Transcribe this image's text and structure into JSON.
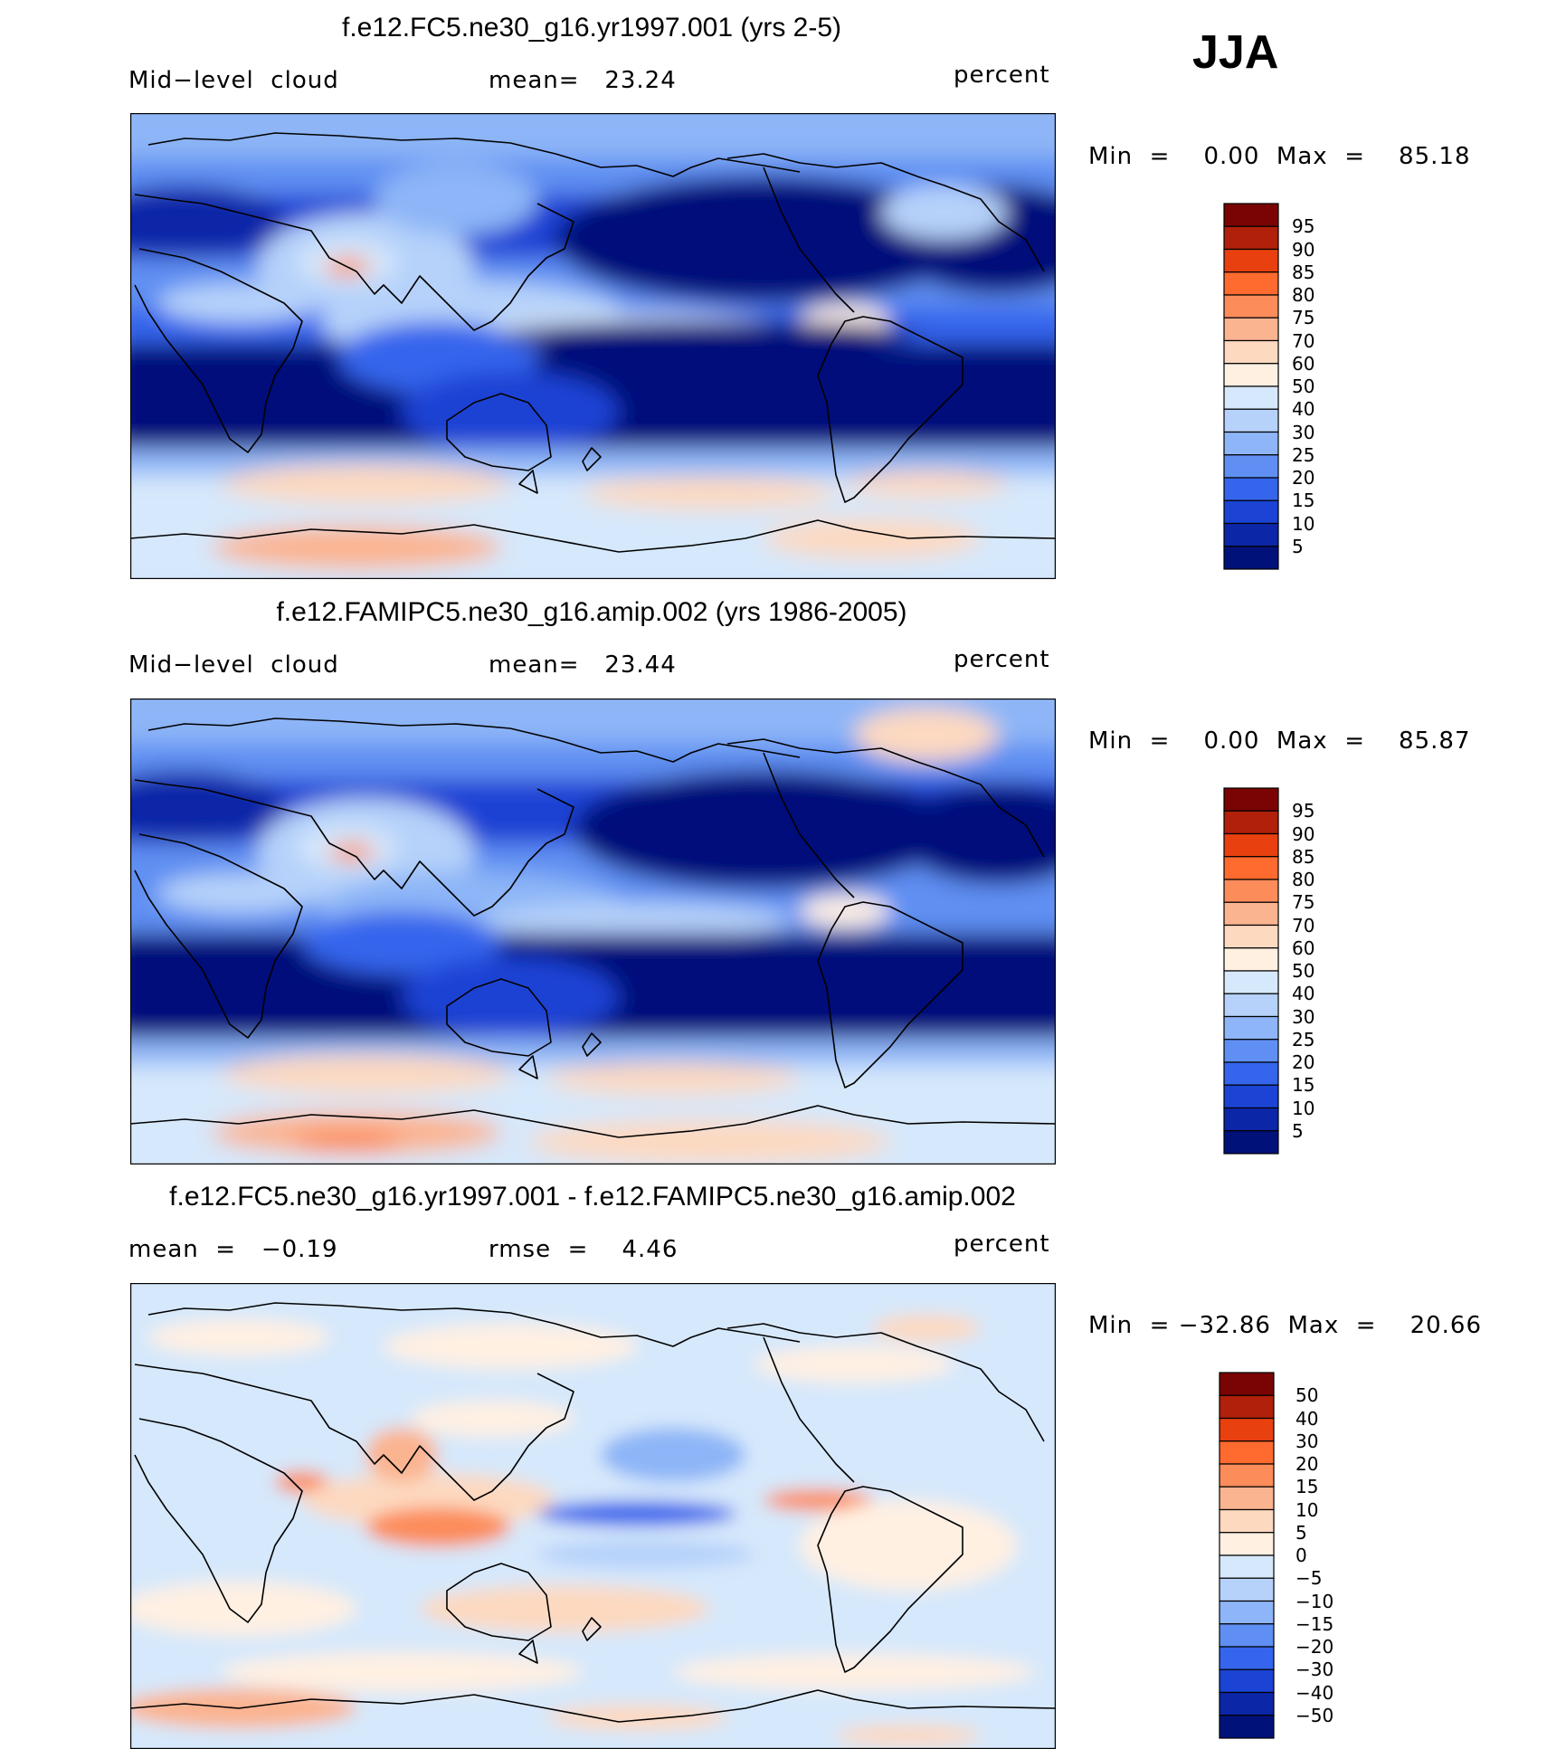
{
  "season": "JJA",
  "panels": [
    {
      "title": "f.e12.FC5.ne30_g16.yr1997.001 (yrs 2-5)",
      "left_label": "Mid−level  cloud",
      "mid_label": "mean=   23.24",
      "right_label": "percent",
      "minmax": "Min  =    0.00  Max  =    85.18",
      "colorbar_labels": [
        "95",
        "90",
        "85",
        "80",
        "75",
        "70",
        "60",
        "50",
        "40",
        "30",
        "25",
        "20",
        "15",
        "10",
        "5"
      ],
      "colorbar_colors": [
        "#7a0403",
        "#b0200a",
        "#e8400f",
        "#ff6a2e",
        "#fc8c5a",
        "#fbb490",
        "#fdd9c0",
        "#fff0e2",
        "#d6e8fb",
        "#b6d2fa",
        "#8db5f7",
        "#5f8ff2",
        "#3465ec",
        "#1b43d4",
        "#0c26a8",
        "#01117a"
      ]
    },
    {
      "title": "f.e12.FAMIPC5.ne30_g16.amip.002 (yrs 1986-2005)",
      "left_label": "Mid−level  cloud",
      "mid_label": "mean=   23.44",
      "right_label": "percent",
      "minmax": "Min  =    0.00  Max  =    85.87",
      "colorbar_labels": [
        "95",
        "90",
        "85",
        "80",
        "75",
        "70",
        "60",
        "50",
        "40",
        "30",
        "25",
        "20",
        "15",
        "10",
        "5"
      ],
      "colorbar_colors": [
        "#7a0403",
        "#b0200a",
        "#e8400f",
        "#ff6a2e",
        "#fc8c5a",
        "#fbb490",
        "#fdd9c0",
        "#fff0e2",
        "#d6e8fb",
        "#b6d2fa",
        "#8db5f7",
        "#5f8ff2",
        "#3465ec",
        "#1b43d4",
        "#0c26a8",
        "#01117a"
      ]
    },
    {
      "title": "f.e12.FC5.ne30_g16.yr1997.001 - f.e12.FAMIPC5.ne30_g16.amip.002",
      "left_label": "mean  =   −0.19",
      "mid_label": "rmse  =    4.46",
      "right_label": "percent",
      "minmax": "Min  = −32.86  Max  =    20.66",
      "colorbar_labels": [
        "50",
        "40",
        "30",
        "20",
        "15",
        "10",
        "5",
        "0",
        "−5",
        "−10",
        "−15",
        "−20",
        "−30",
        "−40",
        "−50"
      ],
      "colorbar_colors": [
        "#7a0403",
        "#b0200a",
        "#e8400f",
        "#ff6a2e",
        "#fc8c5a",
        "#fbb490",
        "#fdd9c0",
        "#fff0e2",
        "#d6e8fb",
        "#b6d2fa",
        "#8db5f7",
        "#5f8ff2",
        "#3465ec",
        "#1b43d4",
        "#0c26a8",
        "#01117a"
      ]
    }
  ],
  "chart_data": [
    {
      "type": "heatmap",
      "title": "f.e12.FC5.ne30_g16.yr1997.001 (yrs 2-5)",
      "variable": "Mid-level cloud",
      "units": "percent",
      "mean": 23.24,
      "min": 0.0,
      "max": 85.18,
      "contour_levels": [
        5,
        10,
        15,
        20,
        25,
        30,
        40,
        50,
        60,
        70,
        75,
        80,
        85,
        90,
        95
      ]
    },
    {
      "type": "heatmap",
      "title": "f.e12.FAMIPC5.ne30_g16.amip.002 (yrs 1986-2005)",
      "variable": "Mid-level cloud",
      "units": "percent",
      "mean": 23.44,
      "min": 0.0,
      "max": 85.87,
      "contour_levels": [
        5,
        10,
        15,
        20,
        25,
        30,
        40,
        50,
        60,
        70,
        75,
        80,
        85,
        90,
        95
      ]
    },
    {
      "type": "heatmap",
      "title": "f.e12.FC5.ne30_g16.yr1997.001 - f.e12.FAMIPC5.ne30_g16.amip.002",
      "variable": "Mid-level cloud difference",
      "units": "percent",
      "mean": -0.19,
      "rmse": 4.46,
      "min": -32.86,
      "max": 20.66,
      "contour_levels": [
        -50,
        -40,
        -30,
        -20,
        -15,
        -10,
        -5,
        0,
        5,
        10,
        15,
        20,
        30,
        40,
        50
      ]
    }
  ]
}
